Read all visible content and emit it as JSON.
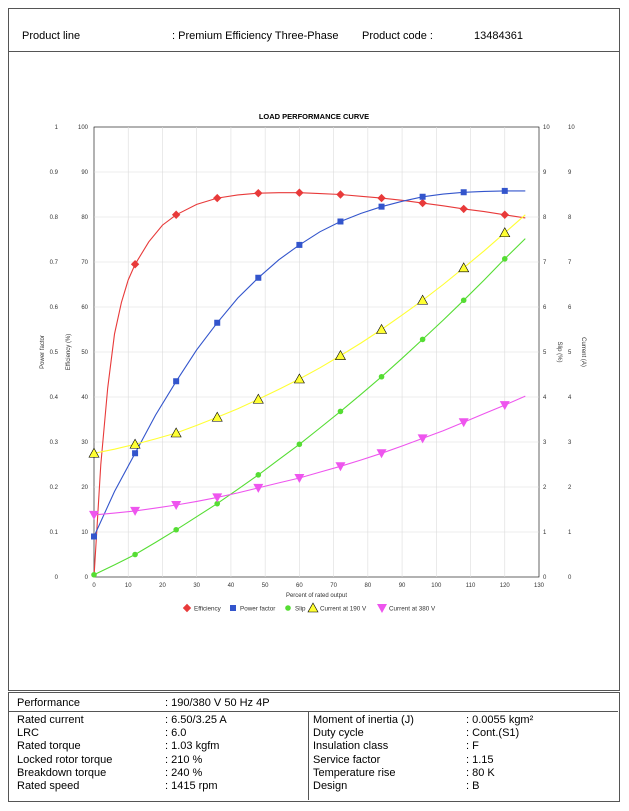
{
  "header": {
    "product_line_label": "Product line",
    "product_line_value": ": Premium Efficiency Three-Phase",
    "product_code_label": "Product code :",
    "product_code_value": "13484361"
  },
  "chart_data": {
    "type": "line",
    "title": "LOAD PERFORMANCE CURVE",
    "xlabel": "Percent of rated output",
    "xlim": [
      0,
      130
    ],
    "x_ticks": [
      "0",
      "10",
      "20",
      "30",
      "40",
      "50",
      "60",
      "70",
      "80",
      "90",
      "100",
      "110",
      "120",
      "130"
    ],
    "axes": {
      "power_factor": {
        "label": "Power factor",
        "lim": [
          0,
          1
        ],
        "ticks": [
          "0",
          "0.1",
          "0.2",
          "0.3",
          "0.4",
          "0.5",
          "0.6",
          "0.7",
          "0.8",
          "0.9",
          "1"
        ]
      },
      "efficiency": {
        "label": "Efficiency (%)",
        "lim": [
          0,
          100
        ],
        "ticks": [
          "0",
          "10",
          "20",
          "30",
          "40",
          "50",
          "60",
          "70",
          "80",
          "90",
          "100"
        ]
      },
      "slip": {
        "label": "Slip (%)",
        "lim": [
          0,
          10
        ],
        "ticks": [
          "0",
          "1",
          "2",
          "3",
          "4",
          "5",
          "6",
          "7",
          "8",
          "9",
          "10"
        ]
      },
      "current": {
        "label": "Current (A)",
        "lim": [
          0,
          10
        ],
        "ticks": [
          "0",
          "1",
          "2",
          "3",
          "4",
          "5",
          "6",
          "7",
          "8",
          "9",
          "10"
        ]
      }
    },
    "grid": true,
    "legend_position": "bottom",
    "series": [
      {
        "name": "Efficiency",
        "axis": "efficiency",
        "color": "#e83a3a",
        "marker": "diamond",
        "points": [
          [
            12,
            69.5
          ],
          [
            24,
            80.5
          ],
          [
            36,
            84.2
          ],
          [
            48,
            85.3
          ],
          [
            60,
            85.4
          ],
          [
            72,
            85.0
          ],
          [
            84,
            84.2
          ],
          [
            96,
            83.1
          ],
          [
            108,
            81.8
          ],
          [
            120,
            80.5
          ]
        ],
        "curve": [
          [
            0,
            0
          ],
          [
            2,
            25
          ],
          [
            4,
            42
          ],
          [
            6,
            54
          ],
          [
            8,
            61
          ],
          [
            10,
            66
          ],
          [
            12,
            69.5
          ],
          [
            16,
            74.5
          ],
          [
            20,
            78.2
          ],
          [
            24,
            80.5
          ],
          [
            30,
            82.8
          ],
          [
            36,
            84.2
          ],
          [
            42,
            84.9
          ],
          [
            48,
            85.3
          ],
          [
            54,
            85.4
          ],
          [
            60,
            85.4
          ],
          [
            66,
            85.2
          ],
          [
            72,
            85.0
          ],
          [
            78,
            84.6
          ],
          [
            84,
            84.2
          ],
          [
            90,
            83.7
          ],
          [
            96,
            83.1
          ],
          [
            102,
            82.5
          ],
          [
            108,
            81.8
          ],
          [
            114,
            81.2
          ],
          [
            120,
            80.5
          ],
          [
            126,
            79.8
          ]
        ]
      },
      {
        "name": "Power factor",
        "axis": "power_factor",
        "color": "#3355cc",
        "marker": "square",
        "points": [
          [
            0,
            0.09
          ],
          [
            12,
            0.275
          ],
          [
            24,
            0.435
          ],
          [
            36,
            0.565
          ],
          [
            48,
            0.665
          ],
          [
            60,
            0.738
          ],
          [
            72,
            0.79
          ],
          [
            84,
            0.823
          ],
          [
            96,
            0.845
          ],
          [
            108,
            0.855
          ],
          [
            120,
            0.858
          ]
        ],
        "curve": [
          [
            0,
            0.09
          ],
          [
            6,
            0.19
          ],
          [
            12,
            0.275
          ],
          [
            18,
            0.36
          ],
          [
            24,
            0.435
          ],
          [
            30,
            0.505
          ],
          [
            36,
            0.565
          ],
          [
            42,
            0.62
          ],
          [
            48,
            0.665
          ],
          [
            54,
            0.705
          ],
          [
            60,
            0.738
          ],
          [
            66,
            0.767
          ],
          [
            72,
            0.79
          ],
          [
            78,
            0.808
          ],
          [
            84,
            0.823
          ],
          [
            90,
            0.835
          ],
          [
            96,
            0.845
          ],
          [
            102,
            0.851
          ],
          [
            108,
            0.855
          ],
          [
            114,
            0.857
          ],
          [
            120,
            0.858
          ],
          [
            126,
            0.858
          ]
        ]
      },
      {
        "name": "Slip",
        "axis": "slip",
        "color": "#55dd33",
        "marker": "circle",
        "points": [
          [
            0,
            0.05
          ],
          [
            12,
            0.5
          ],
          [
            24,
            1.05
          ],
          [
            36,
            1.63
          ],
          [
            48,
            2.27
          ],
          [
            60,
            2.95
          ],
          [
            72,
            3.68
          ],
          [
            84,
            4.45
          ],
          [
            96,
            5.28
          ],
          [
            108,
            6.15
          ],
          [
            120,
            7.07
          ]
        ],
        "curve": [
          [
            0,
            0.05
          ],
          [
            6,
            0.27
          ],
          [
            12,
            0.5
          ],
          [
            18,
            0.77
          ],
          [
            24,
            1.05
          ],
          [
            30,
            1.34
          ],
          [
            36,
            1.63
          ],
          [
            42,
            1.95
          ],
          [
            48,
            2.27
          ],
          [
            54,
            2.61
          ],
          [
            60,
            2.95
          ],
          [
            66,
            3.31
          ],
          [
            72,
            3.68
          ],
          [
            78,
            4.06
          ],
          [
            84,
            4.45
          ],
          [
            90,
            4.86
          ],
          [
            96,
            5.28
          ],
          [
            102,
            5.71
          ],
          [
            108,
            6.15
          ],
          [
            114,
            6.6
          ],
          [
            120,
            7.07
          ],
          [
            126,
            7.52
          ]
        ]
      },
      {
        "name": "Current at 190 V",
        "axis": "current",
        "color": "#ffff33",
        "marker": "triangle-up",
        "points": [
          [
            0,
            2.75
          ],
          [
            12,
            2.95
          ],
          [
            24,
            3.2
          ],
          [
            36,
            3.55
          ],
          [
            48,
            3.95
          ],
          [
            60,
            4.4
          ],
          [
            72,
            4.92
          ],
          [
            84,
            5.5
          ],
          [
            96,
            6.15
          ],
          [
            108,
            6.87
          ],
          [
            120,
            7.65
          ]
        ],
        "curve": [
          [
            0,
            2.75
          ],
          [
            6,
            2.84
          ],
          [
            12,
            2.95
          ],
          [
            18,
            3.07
          ],
          [
            24,
            3.2
          ],
          [
            30,
            3.37
          ],
          [
            36,
            3.55
          ],
          [
            42,
            3.74
          ],
          [
            48,
            3.95
          ],
          [
            54,
            4.17
          ],
          [
            60,
            4.4
          ],
          [
            66,
            4.65
          ],
          [
            72,
            4.92
          ],
          [
            78,
            5.2
          ],
          [
            84,
            5.5
          ],
          [
            90,
            5.82
          ],
          [
            96,
            6.15
          ],
          [
            102,
            6.5
          ],
          [
            108,
            6.87
          ],
          [
            114,
            7.25
          ],
          [
            120,
            7.65
          ],
          [
            126,
            8.05
          ]
        ]
      },
      {
        "name": "Current at 380 V",
        "axis": "current",
        "color": "#ee55ee",
        "marker": "triangle-down",
        "points": [
          [
            0,
            1.38
          ],
          [
            12,
            1.47
          ],
          [
            24,
            1.6
          ],
          [
            36,
            1.77
          ],
          [
            48,
            1.98
          ],
          [
            60,
            2.2
          ],
          [
            72,
            2.46
          ],
          [
            84,
            2.75
          ],
          [
            96,
            3.08
          ],
          [
            108,
            3.44
          ],
          [
            120,
            3.82
          ]
        ],
        "curve": [
          [
            0,
            1.38
          ],
          [
            6,
            1.42
          ],
          [
            12,
            1.47
          ],
          [
            18,
            1.53
          ],
          [
            24,
            1.6
          ],
          [
            30,
            1.68
          ],
          [
            36,
            1.77
          ],
          [
            42,
            1.87
          ],
          [
            48,
            1.98
          ],
          [
            54,
            2.09
          ],
          [
            60,
            2.2
          ],
          [
            66,
            2.33
          ],
          [
            72,
            2.46
          ],
          [
            78,
            2.6
          ],
          [
            84,
            2.75
          ],
          [
            90,
            2.91
          ],
          [
            96,
            3.08
          ],
          [
            102,
            3.25
          ],
          [
            108,
            3.44
          ],
          [
            114,
            3.63
          ],
          [
            120,
            3.82
          ],
          [
            126,
            4.02
          ]
        ]
      }
    ]
  },
  "specs": {
    "performance_label": "Performance",
    "performance_value": ": 190/380 V 50 Hz 4P",
    "left": [
      {
        "label": "Rated current",
        "value": ": 6.50/3.25 A"
      },
      {
        "label": "LRC",
        "value": ": 6.0"
      },
      {
        "label": "Rated torque",
        "value": ": 1.03 kgfm"
      },
      {
        "label": "Locked rotor torque",
        "value": ": 210 %"
      },
      {
        "label": "Breakdown torque",
        "value": ": 240 %"
      },
      {
        "label": "Rated speed",
        "value": ": 1415 rpm"
      }
    ],
    "right": [
      {
        "label": "Moment of inertia (J)",
        "value": ": 0.0055 kgm²"
      },
      {
        "label": "Duty cycle",
        "value": ": Cont.(S1)"
      },
      {
        "label": "Insulation class",
        "value": ": F"
      },
      {
        "label": "Service factor",
        "value": ": 1.15"
      },
      {
        "label": "Temperature rise",
        "value": ": 80 K"
      },
      {
        "label": "Design",
        "value": ": B"
      }
    ]
  }
}
